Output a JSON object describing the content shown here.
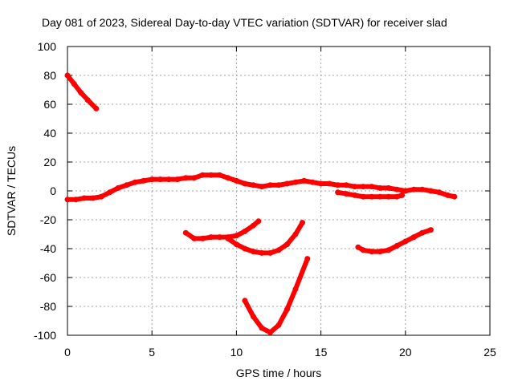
{
  "chart_data": {
    "type": "scatter",
    "title": "Day 081 of 2023, Sidereal Day-to-day VTEC variation (SDTVAR) for receiver slad",
    "xlabel": "GPS time / hours",
    "ylabel": "SDTVAR / TECUs",
    "xlim": [
      0,
      25
    ],
    "ylim": [
      -100,
      100
    ],
    "xticks": [
      0,
      5,
      10,
      15,
      20,
      25
    ],
    "yticks": [
      -100,
      -80,
      -60,
      -40,
      -20,
      0,
      20,
      40,
      60,
      80,
      100
    ],
    "grid": true,
    "marker_color": "#ff0000",
    "series": [
      {
        "name": "arc-1",
        "points": [
          [
            0.0,
            80
          ],
          [
            0.4,
            74
          ],
          [
            0.8,
            68
          ],
          [
            1.2,
            63
          ],
          [
            1.7,
            57
          ]
        ]
      },
      {
        "name": "arc-2",
        "points": [
          [
            0.0,
            -6
          ],
          [
            0.5,
            -6
          ],
          [
            1.0,
            -5
          ],
          [
            1.5,
            -5
          ],
          [
            2.0,
            -4
          ],
          [
            2.5,
            -1
          ],
          [
            3.0,
            2
          ],
          [
            3.5,
            4
          ],
          [
            4.0,
            6
          ],
          [
            4.5,
            7
          ],
          [
            5.0,
            8
          ],
          [
            5.5,
            8
          ],
          [
            6.0,
            8
          ],
          [
            6.5,
            8
          ],
          [
            7.0,
            9
          ],
          [
            7.5,
            9
          ],
          [
            8.0,
            11
          ],
          [
            8.5,
            11
          ],
          [
            9.0,
            11
          ],
          [
            9.5,
            9
          ],
          [
            10.0,
            7
          ],
          [
            10.5,
            5
          ],
          [
            11.0,
            4
          ],
          [
            11.5,
            3
          ],
          [
            12.0,
            4
          ],
          [
            12.5,
            4
          ],
          [
            13.0,
            5
          ],
          [
            13.5,
            6
          ],
          [
            14.0,
            7
          ],
          [
            14.5,
            6
          ],
          [
            15.0,
            5
          ],
          [
            15.5,
            5
          ],
          [
            16.0,
            4
          ],
          [
            16.5,
            4
          ],
          [
            17.0,
            3
          ],
          [
            17.5,
            3
          ],
          [
            18.0,
            3
          ],
          [
            18.5,
            2
          ],
          [
            19.0,
            2
          ],
          [
            19.5,
            1
          ],
          [
            20.0,
            0
          ],
          [
            20.5,
            1
          ],
          [
            21.0,
            1
          ],
          [
            21.5,
            0
          ],
          [
            22.0,
            -1
          ],
          [
            22.5,
            -3
          ],
          [
            22.9,
            -4
          ]
        ]
      },
      {
        "name": "arc-3",
        "points": [
          [
            7.0,
            -29
          ],
          [
            7.5,
            -33
          ],
          [
            8.0,
            -33
          ],
          [
            8.5,
            -32
          ],
          [
            9.0,
            -32
          ],
          [
            9.5,
            -32
          ],
          [
            10.0,
            -31
          ],
          [
            10.5,
            -28
          ],
          [
            11.0,
            -24
          ],
          [
            11.3,
            -21
          ]
        ]
      },
      {
        "name": "arc-4",
        "points": [
          [
            9.5,
            -33
          ],
          [
            10.0,
            -37
          ],
          [
            10.5,
            -40
          ],
          [
            11.0,
            -42
          ],
          [
            11.5,
            -43
          ],
          [
            12.0,
            -43
          ],
          [
            12.5,
            -41
          ],
          [
            13.0,
            -37
          ],
          [
            13.5,
            -30
          ],
          [
            13.9,
            -22
          ]
        ]
      },
      {
        "name": "arc-5",
        "points": [
          [
            10.5,
            -76
          ],
          [
            11.0,
            -87
          ],
          [
            11.5,
            -95
          ],
          [
            12.0,
            -98
          ],
          [
            12.5,
            -93
          ],
          [
            13.0,
            -82
          ],
          [
            13.5,
            -68
          ],
          [
            14.2,
            -47
          ]
        ]
      },
      {
        "name": "arc-6",
        "points": [
          [
            16.0,
            -1
          ],
          [
            16.5,
            -2
          ],
          [
            17.0,
            -3
          ],
          [
            17.5,
            -4
          ],
          [
            18.0,
            -4
          ],
          [
            18.5,
            -4
          ],
          [
            19.0,
            -4
          ],
          [
            19.5,
            -4
          ],
          [
            19.8,
            -3
          ]
        ]
      },
      {
        "name": "arc-7",
        "points": [
          [
            17.2,
            -39
          ],
          [
            17.5,
            -41
          ],
          [
            18.0,
            -42
          ],
          [
            18.5,
            -42
          ],
          [
            19.0,
            -41
          ],
          [
            19.5,
            -38
          ],
          [
            20.0,
            -35
          ],
          [
            20.5,
            -32
          ],
          [
            21.0,
            -29
          ],
          [
            21.5,
            -27
          ]
        ]
      }
    ]
  }
}
